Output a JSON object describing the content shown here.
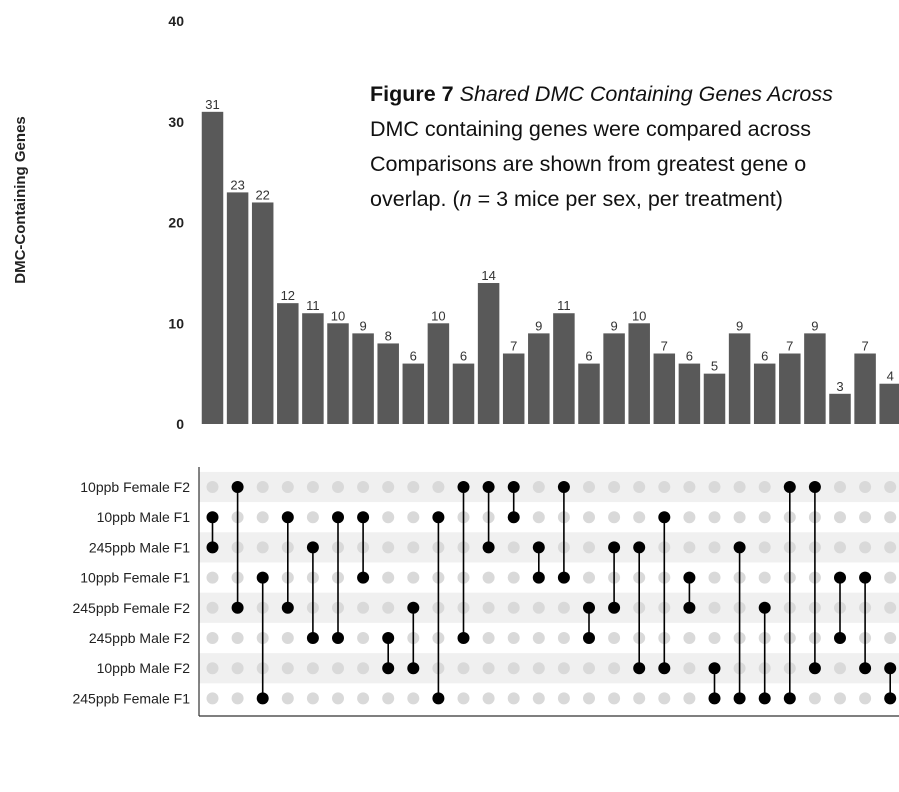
{
  "chart_data": {
    "type": "bar",
    "ylabel": "DMC-Containing Genes",
    "ylim": [
      0,
      40
    ],
    "yticks": [
      0,
      10,
      20,
      30,
      40
    ],
    "values": [
      31,
      23,
      22,
      12,
      11,
      10,
      9,
      8,
      6,
      10,
      6,
      14,
      7,
      9,
      11,
      6,
      9,
      10,
      7,
      6,
      5,
      9,
      6,
      7,
      9,
      3,
      7,
      4
    ],
    "sets": [
      "10ppb Female F2",
      "10ppb Male F1",
      "245ppb Male F1",
      "10ppb Female F1",
      "245ppb Female F2",
      "245ppb Male F2",
      "10ppb Male F2",
      "245ppb Female F1"
    ],
    "intersections": [
      [
        1,
        2
      ],
      [
        0,
        4
      ],
      [
        3,
        7
      ],
      [
        1,
        4
      ],
      [
        2,
        5
      ],
      [
        1,
        5
      ],
      [
        1,
        3
      ],
      [
        5,
        6
      ],
      [
        4,
        6
      ],
      [
        1,
        7
      ],
      [
        0,
        5
      ],
      [
        0,
        2
      ],
      [
        0,
        1
      ],
      [
        2,
        3
      ],
      [
        0,
        3
      ],
      [
        4,
        5
      ],
      [
        2,
        4
      ],
      [
        2,
        6
      ],
      [
        1,
        6
      ],
      [
        3,
        4
      ],
      [
        6,
        7
      ],
      [
        2,
        7
      ],
      [
        4,
        7
      ],
      [
        0,
        7
      ],
      [
        0,
        6
      ],
      [
        3,
        5
      ],
      [
        3,
        6
      ],
      [
        6,
        7
      ]
    ],
    "colors": {
      "bar": "#595959",
      "dot_on": "#000000",
      "dot_off": "#d9d9d9",
      "band": "#f0f0f0"
    }
  },
  "caption": {
    "figure_label": "Figure 7",
    "figure_title": "Shared DMC Containing Genes Across",
    "line2": "DMC containing genes were compared across",
    "line3": "Comparisons are shown from greatest gene o",
    "line4_start": "overlap. (",
    "line4_n": "n",
    "line4_end": " = 3 mice per sex, per treatment)"
  }
}
